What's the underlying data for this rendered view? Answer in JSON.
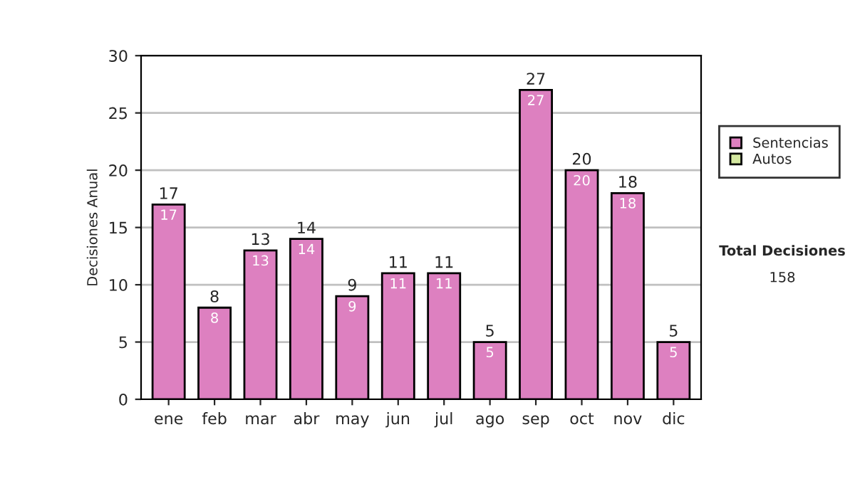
{
  "chart_data": {
    "type": "bar",
    "ylabel": "Decisiones Anual",
    "categories": [
      "ene",
      "feb",
      "mar",
      "abr",
      "may",
      "jun",
      "jul",
      "ago",
      "sep",
      "oct",
      "nov",
      "dic"
    ],
    "series": [
      {
        "name": "Sentencias",
        "color": "#dd80c0",
        "values": [
          17,
          8,
          13,
          14,
          9,
          11,
          11,
          5,
          27,
          20,
          18,
          5
        ]
      },
      {
        "name": "Autos",
        "color": "#d4e8a0",
        "values": [
          null,
          null,
          null,
          null,
          null,
          null,
          null,
          null,
          null,
          null,
          null,
          null
        ]
      }
    ],
    "stacked": true,
    "data_labels": true,
    "totals": [
      "17",
      "8",
      "13",
      "14",
      "9",
      "11",
      "11",
      "5",
      "27",
      "20",
      "18",
      "5"
    ],
    "ylim": [
      0,
      30
    ],
    "yticks": [
      0,
      5,
      10,
      15,
      20,
      25,
      30
    ],
    "grid": "y",
    "legend": "right",
    "annotations": [
      "Total Decisiones",
      "158"
    ]
  }
}
